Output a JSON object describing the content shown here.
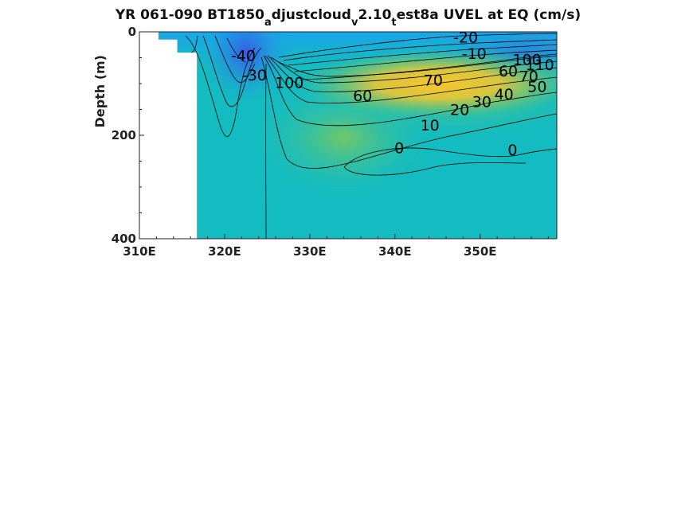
{
  "chart_data": {
    "type": "heatmap",
    "title": {
      "segments": [
        {
          "text": "YR 061-090 BT1850",
          "sub": false
        },
        {
          "text": "a",
          "sub": true
        },
        {
          "text": "djustcloud",
          "sub": false
        },
        {
          "text": "v",
          "sub": true
        },
        {
          "text": "2.10",
          "sub": false
        },
        {
          "text": "t",
          "sub": true
        },
        {
          "text": "est8a UVEL at EQ (cm/s)",
          "sub": false
        }
      ]
    },
    "xlabel": "",
    "ylabel": "Depth (m)",
    "xlim": [
      310,
      359
    ],
    "ylim": [
      0,
      400
    ],
    "y_reversed": true,
    "x_ticks": [
      {
        "value": 310,
        "label": "310E"
      },
      {
        "value": 320,
        "label": "320E"
      },
      {
        "value": 330,
        "label": "330E"
      },
      {
        "value": 340,
        "label": "340E"
      },
      {
        "value": 350,
        "label": "350E"
      }
    ],
    "y_ticks": [
      {
        "value": 0,
        "label": "0"
      },
      {
        "value": 200,
        "label": "200"
      },
      {
        "value": 400,
        "label": "400"
      }
    ],
    "colormap": [
      "#3a4fe6",
      "#1ba5e8",
      "#13bcc0",
      "#5cc46e",
      "#c5c43c",
      "#f5c02e"
    ],
    "land_mask": [
      {
        "x0": 310,
        "x1": 312.2,
        "z0": 0,
        "z1": 400
      },
      {
        "x0": 312.2,
        "x1": 314.4,
        "z0": 15,
        "z1": 400
      },
      {
        "x0": 314.4,
        "x1": 316.7,
        "z0": 40,
        "z1": 400
      }
    ],
    "contour_labels": [
      {
        "text": "-20",
        "x": 348.3,
        "z": 12
      },
      {
        "text": "-10",
        "x": 349.3,
        "z": 44
      },
      {
        "text": "100",
        "x": 355.5,
        "z": 55
      },
      {
        "text": "110",
        "x": 357,
        "z": 65
      },
      {
        "text": "60",
        "x": 353.3,
        "z": 78
      },
      {
        "text": "70",
        "x": 355.7,
        "z": 88
      },
      {
        "text": "70",
        "x": 344.5,
        "z": 95
      },
      {
        "text": "50",
        "x": 356.7,
        "z": 108
      },
      {
        "text": "40",
        "x": 352.8,
        "z": 122
      },
      {
        "text": "60",
        "x": 336.2,
        "z": 125
      },
      {
        "text": "30",
        "x": 350.2,
        "z": 137
      },
      {
        "text": "20",
        "x": 347.6,
        "z": 152
      },
      {
        "text": "10",
        "x": 344.1,
        "z": 182
      },
      {
        "text": "0",
        "x": 340.5,
        "z": 226
      },
      {
        "text": "0",
        "x": 353.8,
        "z": 230
      },
      {
        "text": "-40",
        "x": 322.2,
        "z": 48
      },
      {
        "text": "-30",
        "x": 323.5,
        "z": 85
      },
      {
        "text": "100",
        "x": 327.6,
        "z": 100
      }
    ]
  }
}
